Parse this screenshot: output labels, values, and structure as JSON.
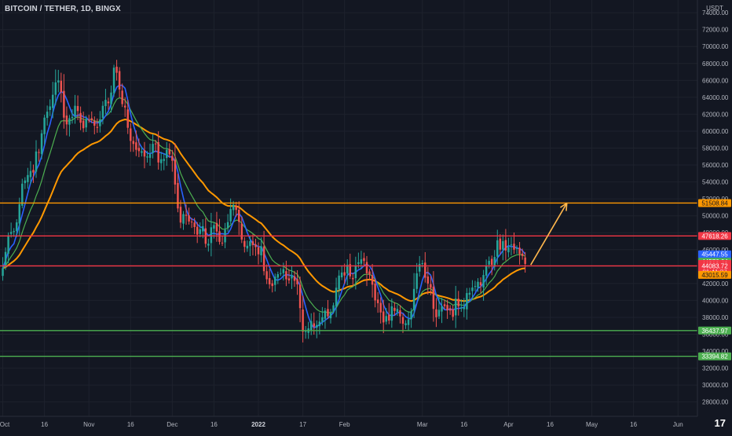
{
  "header": {
    "symbol_title": "BITCOIN / TETHER, 1D, BINGX"
  },
  "branding": {
    "logo_text": "17"
  },
  "chart_data": {
    "type": "candlestick",
    "currency_label": "USDT",
    "y_ticks": [
      28000,
      30000,
      32000,
      34000,
      36000,
      38000,
      40000,
      42000,
      44000,
      46000,
      48000,
      50000,
      52000,
      54000,
      56000,
      58000,
      60000,
      62000,
      64000,
      66000,
      68000,
      70000,
      72000,
      74000
    ],
    "y_tick_format": "0.00",
    "ylim": [
      26300,
      75500
    ],
    "x_ticks": [
      {
        "label": "Oct",
        "day": 0
      },
      {
        "label": "16",
        "day": 15
      },
      {
        "label": "Nov",
        "day": 31
      },
      {
        "label": "16",
        "day": 46
      },
      {
        "label": "Dec",
        "day": 61
      },
      {
        "label": "16",
        "day": 76
      },
      {
        "label": "2022",
        "day": 92,
        "bold": true
      },
      {
        "label": "17",
        "day": 108
      },
      {
        "label": "Feb",
        "day": 123
      },
      {
        "label": "Mar",
        "day": 151
      },
      {
        "label": "16",
        "day": 166
      },
      {
        "label": "Apr",
        "day": 182
      },
      {
        "label": "16",
        "day": 197
      },
      {
        "label": "May",
        "day": 212
      },
      {
        "label": "16",
        "day": 227
      },
      {
        "label": "Jun",
        "day": 243
      }
    ],
    "xlim": [
      -1,
      250
    ],
    "horizontal_levels": [
      {
        "name": "resistance-orange",
        "value": 51508.84,
        "color": "#ff9800"
      },
      {
        "name": "resistance-red",
        "value": 47618.26,
        "color": "#f23645"
      },
      {
        "name": "support-red",
        "value": 44083.72,
        "color": "#f23645"
      },
      {
        "name": "support-green-upper",
        "value": 36437.97,
        "color": "#4caf50"
      },
      {
        "name": "support-green-lower",
        "value": 33394.82,
        "color": "#4caf50"
      }
    ],
    "price_labels": [
      {
        "text": "51508.84",
        "value": 51508.84,
        "bg": "#ff9800",
        "fg": "#131722"
      },
      {
        "text": "47618.26",
        "value": 47618.26,
        "bg": "#f23645",
        "fg": "#ffffff"
      },
      {
        "text": "45447.55",
        "value": 45447.55,
        "bg": "#2962ff",
        "fg": "#ffffff"
      },
      {
        "text": "44576.64",
        "value": 44576.64,
        "bg": "#4caf50",
        "fg": "#ffffff"
      },
      {
        "text": "44310.49",
        "value": 44310.49,
        "bg": "#f23645",
        "fg": "#ffffff",
        "countdown": "01:41:27"
      },
      {
        "text": "44083.72",
        "value": 44083.72,
        "bg": "#f23645",
        "fg": "#ffffff"
      },
      {
        "text": "43015.59",
        "value": 43015.59,
        "bg": "#ff9800",
        "fg": "#131722"
      },
      {
        "text": "36437.97",
        "value": 36437.97,
        "bg": "#4caf50",
        "fg": "#ffffff"
      },
      {
        "text": "33394.82",
        "value": 33394.82,
        "bg": "#4caf50",
        "fg": "#ffffff"
      }
    ],
    "colors": {
      "background": "#131722",
      "grid": "#1e222d",
      "up": "#26a69a",
      "down": "#ef5350",
      "ma_fast": "#2962ff",
      "ma_mid": "#4caf50",
      "ma_slow": "#ff9800",
      "arrow": "#ffb74d"
    },
    "key_closes": [
      {
        "day": 0,
        "close": 43800
      },
      {
        "day": 2,
        "close": 47700
      },
      {
        "day": 4,
        "close": 48200
      },
      {
        "day": 7,
        "close": 53800
      },
      {
        "day": 10,
        "close": 55300
      },
      {
        "day": 13,
        "close": 57500
      },
      {
        "day": 15,
        "close": 61600
      },
      {
        "day": 18,
        "close": 64300
      },
      {
        "day": 20,
        "close": 66000
      },
      {
        "day": 23,
        "close": 60800
      },
      {
        "day": 26,
        "close": 63000
      },
      {
        "day": 28,
        "close": 61000
      },
      {
        "day": 31,
        "close": 61300
      },
      {
        "day": 35,
        "close": 61400
      },
      {
        "day": 38,
        "close": 63300
      },
      {
        "day": 40,
        "close": 67500
      },
      {
        "day": 41,
        "close": 66900
      },
      {
        "day": 43,
        "close": 63200
      },
      {
        "day": 45,
        "close": 60400
      },
      {
        "day": 48,
        "close": 57800
      },
      {
        "day": 51,
        "close": 57000
      },
      {
        "day": 54,
        "close": 58500
      },
      {
        "day": 56,
        "close": 56300
      },
      {
        "day": 59,
        "close": 57800
      },
      {
        "day": 61,
        "close": 56500
      },
      {
        "day": 64,
        "close": 49200
      },
      {
        "day": 66,
        "close": 50000
      },
      {
        "day": 68,
        "close": 49300
      },
      {
        "day": 71,
        "close": 48400
      },
      {
        "day": 74,
        "close": 46700
      },
      {
        "day": 76,
        "close": 48900
      },
      {
        "day": 79,
        "close": 46800
      },
      {
        "day": 82,
        "close": 50800
      },
      {
        "day": 84,
        "close": 50700
      },
      {
        "day": 86,
        "close": 47200
      },
      {
        "day": 89,
        "close": 47000
      },
      {
        "day": 91,
        "close": 46300
      },
      {
        "day": 93,
        "close": 46400
      },
      {
        "day": 95,
        "close": 42500
      },
      {
        "day": 97,
        "close": 41700
      },
      {
        "day": 99,
        "close": 43100
      },
      {
        "day": 102,
        "close": 42500
      },
      {
        "day": 104,
        "close": 43000
      },
      {
        "day": 106,
        "close": 41900
      },
      {
        "day": 108,
        "close": 36300
      },
      {
        "day": 110,
        "close": 36700
      },
      {
        "day": 112,
        "close": 36900
      },
      {
        "day": 114,
        "close": 37500
      },
      {
        "day": 116,
        "close": 38800
      },
      {
        "day": 118,
        "close": 38500
      },
      {
        "day": 120,
        "close": 41500
      },
      {
        "day": 122,
        "close": 43300
      },
      {
        "day": 124,
        "close": 44200
      },
      {
        "day": 126,
        "close": 42500
      },
      {
        "day": 128,
        "close": 44500
      },
      {
        "day": 131,
        "close": 43200
      },
      {
        "day": 134,
        "close": 40000
      },
      {
        "day": 137,
        "close": 37400
      },
      {
        "day": 140,
        "close": 39300
      },
      {
        "day": 142,
        "close": 39000
      },
      {
        "day": 145,
        "close": 37300
      },
      {
        "day": 147,
        "close": 38700
      },
      {
        "day": 149,
        "close": 43200
      },
      {
        "day": 151,
        "close": 44400
      },
      {
        "day": 153,
        "close": 42000
      },
      {
        "day": 155,
        "close": 39000
      },
      {
        "day": 158,
        "close": 39300
      },
      {
        "day": 161,
        "close": 38800
      },
      {
        "day": 164,
        "close": 39300
      },
      {
        "day": 166,
        "close": 39200
      },
      {
        "day": 168,
        "close": 40900
      },
      {
        "day": 171,
        "close": 42200
      },
      {
        "day": 173,
        "close": 43000
      },
      {
        "day": 176,
        "close": 44200
      },
      {
        "day": 178,
        "close": 47100
      },
      {
        "day": 180,
        "close": 47000
      },
      {
        "day": 182,
        "close": 46300
      },
      {
        "day": 184,
        "close": 46000
      },
      {
        "day": 186,
        "close": 45500
      },
      {
        "day": 188,
        "close": 44310
      }
    ],
    "projection_arrow": {
      "from_day": 190,
      "from_value": 44200,
      "to_day": 203,
      "to_value": 51500
    }
  }
}
